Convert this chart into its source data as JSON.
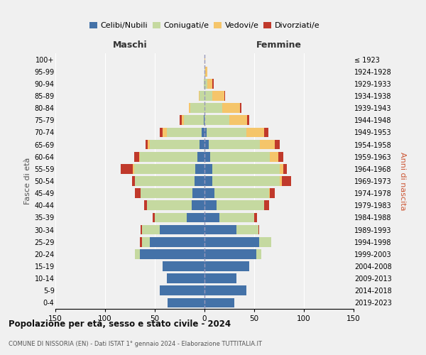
{
  "age_groups": [
    "0-4",
    "5-9",
    "10-14",
    "15-19",
    "20-24",
    "25-29",
    "30-34",
    "35-39",
    "40-44",
    "45-49",
    "50-54",
    "55-59",
    "60-64",
    "65-69",
    "70-74",
    "75-79",
    "80-84",
    "85-89",
    "90-94",
    "95-99",
    "100+"
  ],
  "birth_years": [
    "2019-2023",
    "2014-2018",
    "2009-2013",
    "2004-2008",
    "1999-2003",
    "1994-1998",
    "1989-1993",
    "1984-1988",
    "1979-1983",
    "1974-1978",
    "1969-1973",
    "1964-1968",
    "1959-1963",
    "1954-1958",
    "1949-1953",
    "1944-1948",
    "1939-1943",
    "1934-1938",
    "1929-1933",
    "1924-1928",
    "≤ 1923"
  ],
  "male": {
    "celibe": [
      37,
      45,
      38,
      42,
      65,
      55,
      45,
      18,
      13,
      12,
      10,
      9,
      7,
      5,
      3,
      1,
      0,
      0,
      0,
      0,
      0
    ],
    "coniugato": [
      0,
      0,
      0,
      0,
      5,
      8,
      18,
      32,
      45,
      52,
      60,
      62,
      58,
      50,
      35,
      20,
      14,
      5,
      1,
      0,
      0
    ],
    "vedovo": [
      0,
      0,
      0,
      0,
      0,
      0,
      0,
      0,
      0,
      0,
      0,
      1,
      1,
      2,
      4,
      2,
      2,
      1,
      0,
      0,
      0
    ],
    "divorziato": [
      0,
      0,
      0,
      0,
      0,
      2,
      1,
      2,
      3,
      6,
      3,
      12,
      5,
      2,
      3,
      2,
      0,
      0,
      0,
      0,
      0
    ]
  },
  "female": {
    "nubile": [
      30,
      42,
      32,
      45,
      52,
      55,
      32,
      15,
      12,
      10,
      8,
      8,
      6,
      4,
      2,
      0,
      0,
      0,
      0,
      0,
      0
    ],
    "coniugata": [
      0,
      0,
      0,
      0,
      5,
      12,
      22,
      35,
      48,
      55,
      68,
      68,
      60,
      52,
      40,
      25,
      18,
      8,
      3,
      1,
      0
    ],
    "vedova": [
      0,
      0,
      0,
      0,
      0,
      0,
      0,
      0,
      0,
      1,
      2,
      3,
      8,
      15,
      18,
      18,
      18,
      12,
      5,
      2,
      1
    ],
    "divorziata": [
      0,
      0,
      0,
      0,
      0,
      0,
      1,
      3,
      5,
      5,
      9,
      4,
      5,
      5,
      4,
      2,
      1,
      1,
      1,
      0,
      0
    ]
  },
  "colors": {
    "celibe": "#4472a8",
    "coniugato": "#c5d9a0",
    "vedovo": "#f5c56a",
    "divorziato": "#c0392b"
  },
  "title": "Popolazione per età, sesso e stato civile - 2024",
  "subtitle": "COMUNE DI NISSORIA (EN) - Dati ISTAT 1° gennaio 2024 - Elaborazione TUTTITALIA.IT",
  "xlabel_left": "Maschi",
  "xlabel_right": "Femmine",
  "ylabel_left": "Fasce di età",
  "ylabel_right": "Anni di nascita",
  "xlim": 150,
  "legend_labels": [
    "Celibi/Nubili",
    "Coniugati/e",
    "Vedovi/e",
    "Divorziati/e"
  ],
  "bg_color": "#f0f0f0"
}
